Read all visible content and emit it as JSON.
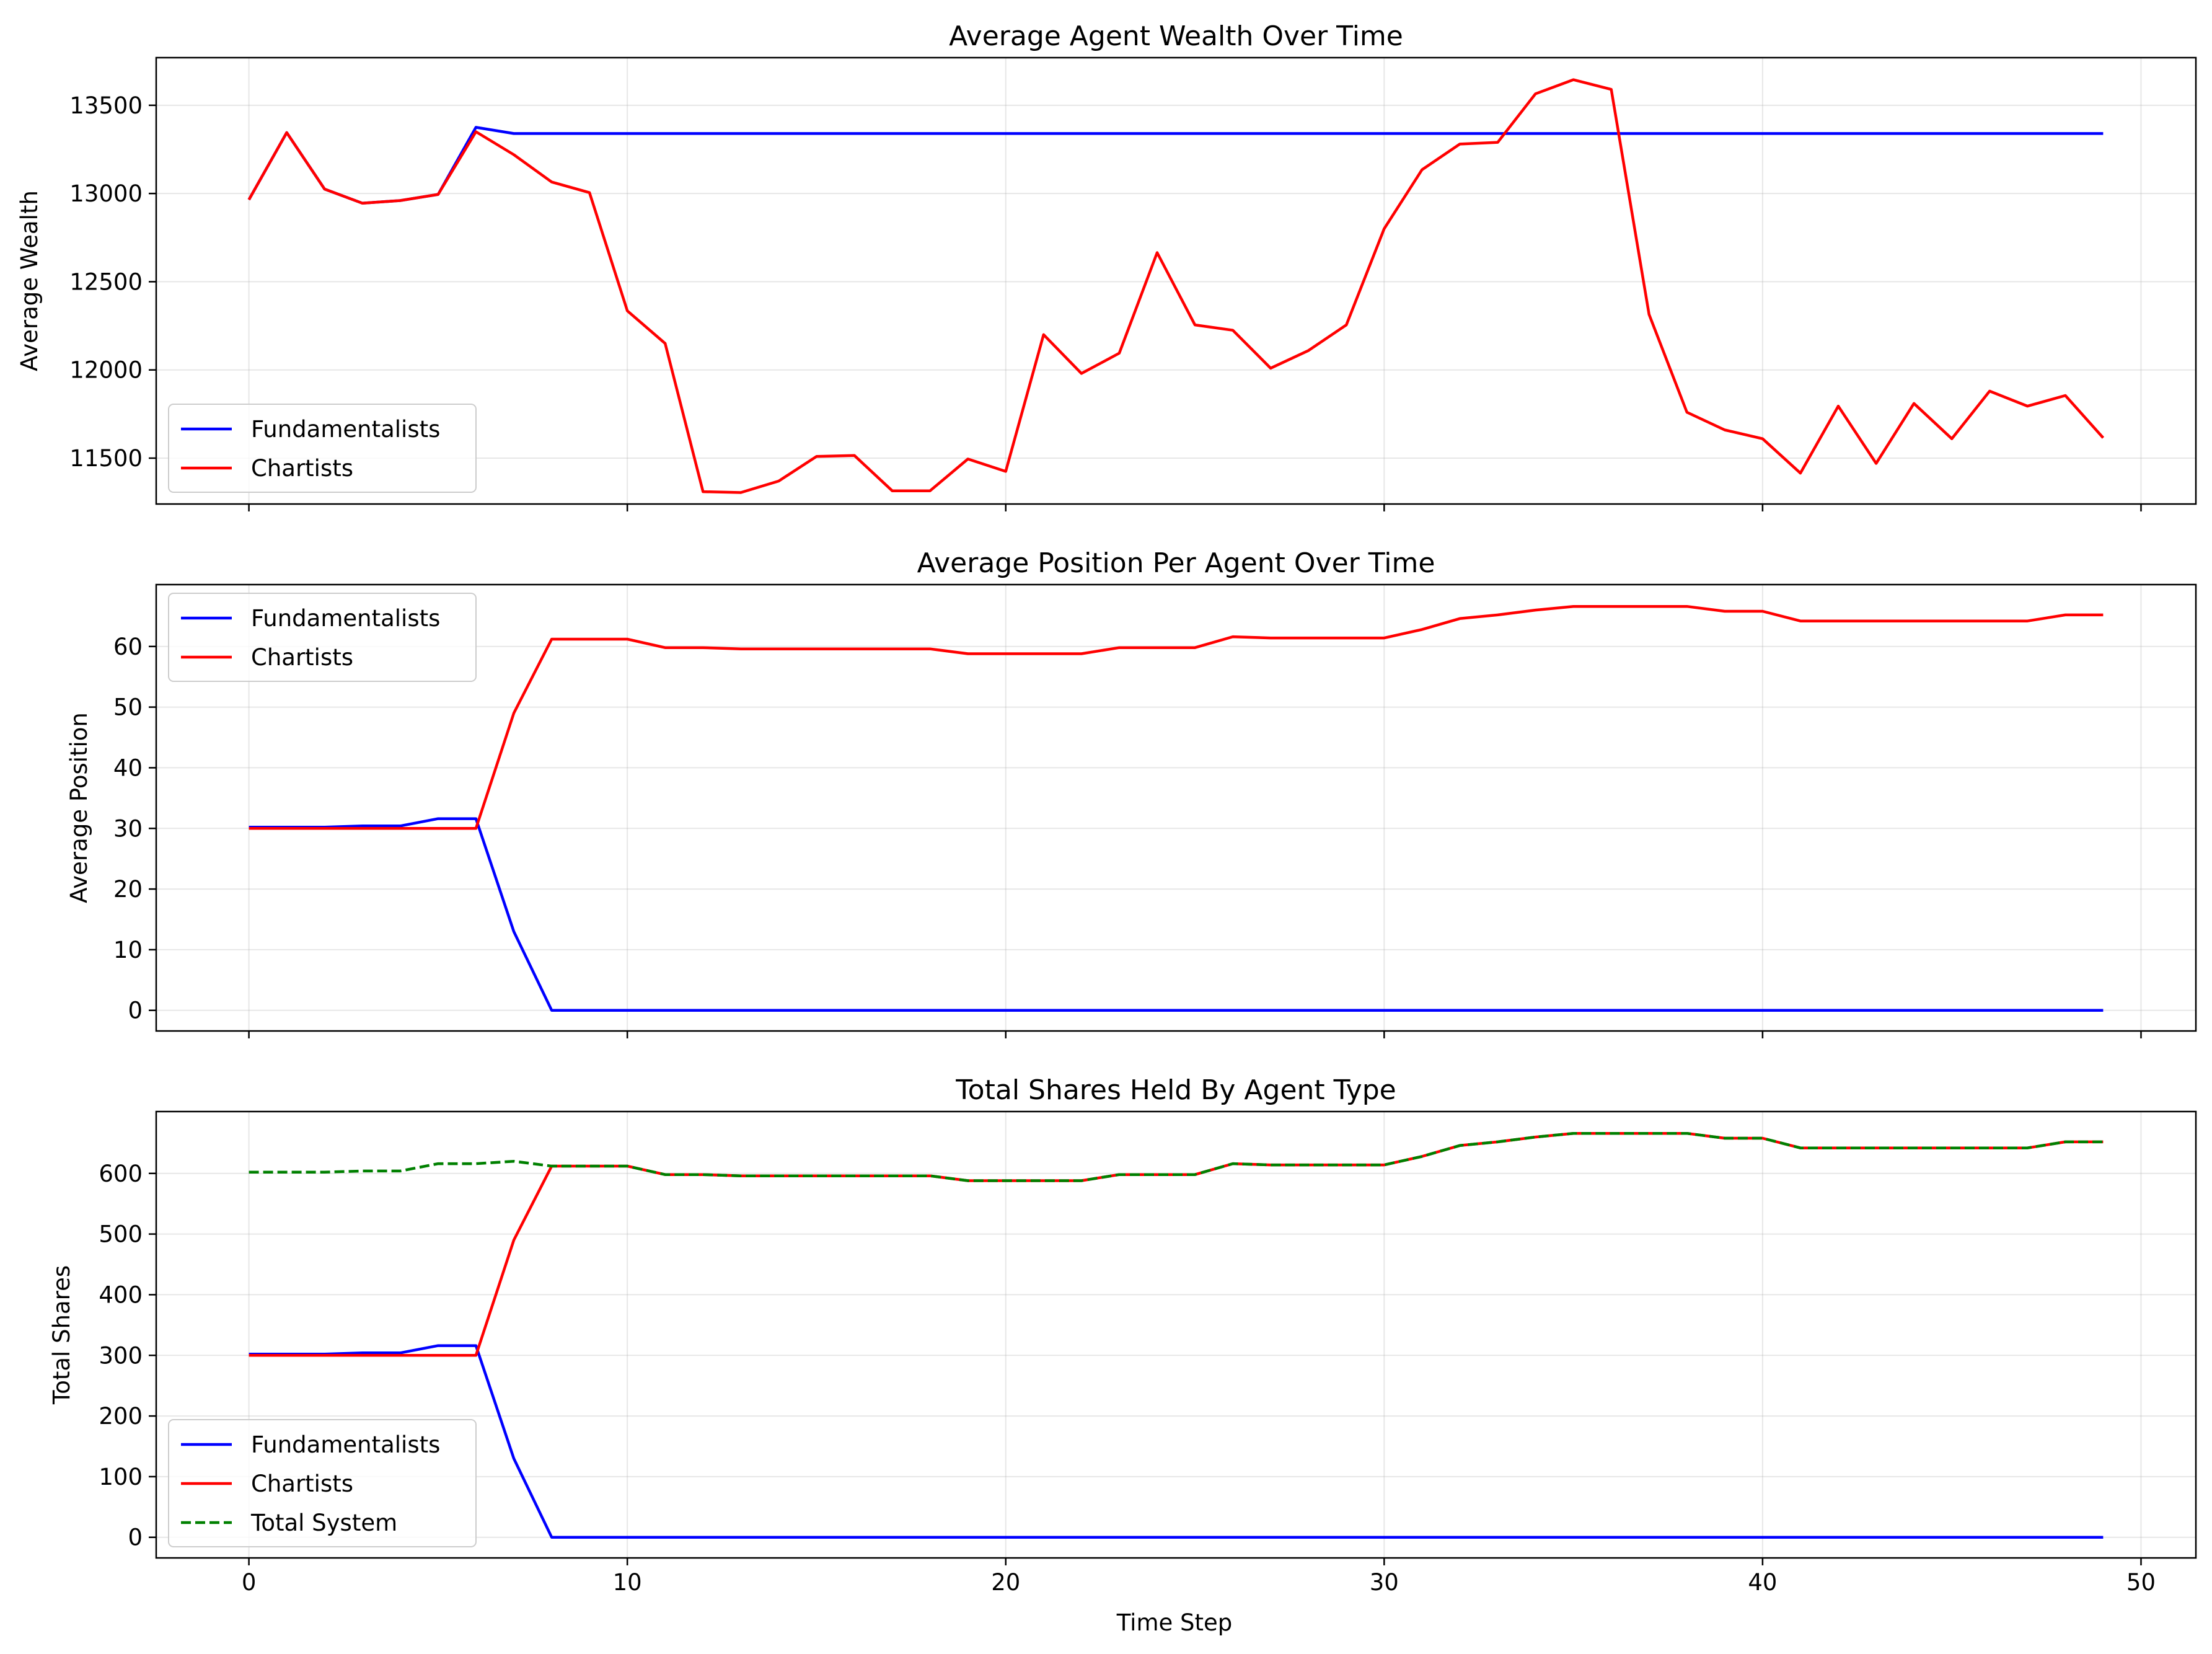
{
  "figure": {
    "xlabel": "Time Step"
  },
  "chart_data": [
    {
      "type": "line",
      "title": "Average Agent Wealth Over Time",
      "xlabel": "",
      "ylabel": "Average Wealth",
      "xlim": [
        -2.45,
        51.45
      ],
      "ylim": [
        11240,
        13770
      ],
      "xticks": [
        0,
        10,
        20,
        30,
        40,
        50
      ],
      "xtick_labels_visible": false,
      "yticks": [
        11500,
        12000,
        12500,
        13000,
        13500
      ],
      "grid": true,
      "legend": "lower-left",
      "x": [
        0,
        1,
        2,
        3,
        4,
        5,
        6,
        7,
        8,
        9,
        10,
        11,
        12,
        13,
        14,
        15,
        16,
        17,
        18,
        19,
        20,
        21,
        22,
        23,
        24,
        25,
        26,
        27,
        28,
        29,
        30,
        31,
        32,
        33,
        34,
        35,
        36,
        37,
        38,
        39,
        40,
        41,
        42,
        43,
        44,
        45,
        46,
        47,
        48,
        49
      ],
      "series": [
        {
          "name": "Fundamentalists",
          "color": "#0000ff",
          "dash": "solid",
          "values": [
            12965,
            13345,
            13025,
            12945,
            12960,
            12995,
            13375,
            13340,
            13340,
            13340,
            13340,
            13340,
            13340,
            13340,
            13340,
            13340,
            13340,
            13340,
            13340,
            13340,
            13340,
            13340,
            13340,
            13340,
            13340,
            13340,
            13340,
            13340,
            13340,
            13340,
            13340,
            13340,
            13340,
            13340,
            13340,
            13340,
            13340,
            13340,
            13340,
            13340,
            13340,
            13340,
            13340,
            13340,
            13340,
            13340,
            13340,
            13340,
            13340,
            13340
          ]
        },
        {
          "name": "Chartists",
          "color": "#ff0000",
          "dash": "solid",
          "values": [
            12965,
            13345,
            13025,
            12945,
            12960,
            12995,
            13350,
            13220,
            13065,
            13005,
            12335,
            12150,
            11310,
            11305,
            11370,
            11510,
            11515,
            11315,
            11315,
            11495,
            11425,
            12200,
            11980,
            12095,
            12665,
            12255,
            12225,
            12010,
            12110,
            12255,
            12800,
            13135,
            13280,
            13290,
            13565,
            13645,
            13590,
            12315,
            11760,
            11660,
            11610,
            11415,
            11795,
            11470,
            11810,
            11610,
            11880,
            11795,
            11855,
            11615
          ]
        }
      ]
    },
    {
      "type": "line",
      "title": "Average Position Per Agent Over Time",
      "xlabel": "",
      "ylabel": "Average Position",
      "xlim": [
        -2.45,
        51.45
      ],
      "ylim": [
        -3.4,
        70.2
      ],
      "xticks": [
        0,
        10,
        20,
        30,
        40,
        50
      ],
      "xtick_labels_visible": false,
      "yticks": [
        0,
        10,
        20,
        30,
        40,
        50,
        60
      ],
      "grid": true,
      "legend": "upper-left",
      "x": [
        0,
        1,
        2,
        3,
        4,
        5,
        6,
        7,
        8,
        9,
        10,
        11,
        12,
        13,
        14,
        15,
        16,
        17,
        18,
        19,
        20,
        21,
        22,
        23,
        24,
        25,
        26,
        27,
        28,
        29,
        30,
        31,
        32,
        33,
        34,
        35,
        36,
        37,
        38,
        39,
        40,
        41,
        42,
        43,
        44,
        45,
        46,
        47,
        48,
        49
      ],
      "series": [
        {
          "name": "Fundamentalists",
          "color": "#0000ff",
          "dash": "solid",
          "values": [
            30.2,
            30.2,
            30.2,
            30.4,
            30.4,
            31.6,
            31.6,
            13.0,
            0,
            0,
            0,
            0,
            0,
            0,
            0,
            0,
            0,
            0,
            0,
            0,
            0,
            0,
            0,
            0,
            0,
            0,
            0,
            0,
            0,
            0,
            0,
            0,
            0,
            0,
            0,
            0,
            0,
            0,
            0,
            0,
            0,
            0,
            0,
            0,
            0,
            0,
            0,
            0,
            0,
            0
          ]
        },
        {
          "name": "Chartists",
          "color": "#ff0000",
          "dash": "solid",
          "values": [
            30.0,
            30.0,
            30.0,
            30.0,
            30.0,
            30.0,
            30.0,
            49.0,
            61.2,
            61.2,
            61.2,
            59.8,
            59.8,
            59.6,
            59.6,
            59.6,
            59.6,
            59.6,
            59.6,
            58.8,
            58.8,
            58.8,
            58.8,
            59.8,
            59.8,
            59.8,
            61.6,
            61.4,
            61.4,
            61.4,
            61.4,
            62.8,
            64.6,
            65.2,
            66.0,
            66.6,
            66.6,
            66.6,
            66.6,
            65.8,
            65.8,
            64.2,
            64.2,
            64.2,
            64.2,
            64.2,
            64.2,
            64.2,
            65.2,
            65.2
          ]
        }
      ]
    },
    {
      "type": "line",
      "title": "Total Shares Held By Agent Type",
      "xlabel": "Time Step",
      "ylabel": "Total Shares",
      "xlim": [
        -2.45,
        51.45
      ],
      "ylim": [
        -34,
        702
      ],
      "xticks": [
        0,
        10,
        20,
        30,
        40,
        50
      ],
      "xtick_labels_visible": true,
      "yticks": [
        0,
        100,
        200,
        300,
        400,
        500,
        600
      ],
      "grid": true,
      "legend": "lower-left",
      "x": [
        0,
        1,
        2,
        3,
        4,
        5,
        6,
        7,
        8,
        9,
        10,
        11,
        12,
        13,
        14,
        15,
        16,
        17,
        18,
        19,
        20,
        21,
        22,
        23,
        24,
        25,
        26,
        27,
        28,
        29,
        30,
        31,
        32,
        33,
        34,
        35,
        36,
        37,
        38,
        39,
        40,
        41,
        42,
        43,
        44,
        45,
        46,
        47,
        48,
        49
      ],
      "series": [
        {
          "name": "Fundamentalists",
          "color": "#0000ff",
          "dash": "solid",
          "values": [
            302,
            302,
            302,
            304,
            304,
            316,
            316,
            130,
            0,
            0,
            0,
            0,
            0,
            0,
            0,
            0,
            0,
            0,
            0,
            0,
            0,
            0,
            0,
            0,
            0,
            0,
            0,
            0,
            0,
            0,
            0,
            0,
            0,
            0,
            0,
            0,
            0,
            0,
            0,
            0,
            0,
            0,
            0,
            0,
            0,
            0,
            0,
            0,
            0,
            0
          ]
        },
        {
          "name": "Chartists",
          "color": "#ff0000",
          "dash": "solid",
          "values": [
            300,
            300,
            300,
            300,
            300,
            300,
            300,
            490,
            612,
            612,
            612,
            598,
            598,
            596,
            596,
            596,
            596,
            596,
            596,
            588,
            588,
            588,
            588,
            598,
            598,
            598,
            616,
            614,
            614,
            614,
            614,
            628,
            646,
            652,
            660,
            666,
            666,
            666,
            666,
            658,
            658,
            642,
            642,
            642,
            642,
            642,
            642,
            642,
            652,
            652
          ]
        },
        {
          "name": "Total System",
          "color": "#008000",
          "dash": "dashed",
          "values": [
            602,
            602,
            602,
            604,
            604,
            616,
            616,
            620,
            612,
            612,
            612,
            598,
            598,
            596,
            596,
            596,
            596,
            596,
            596,
            588,
            588,
            588,
            588,
            598,
            598,
            598,
            616,
            614,
            614,
            614,
            614,
            628,
            646,
            652,
            660,
            666,
            666,
            666,
            666,
            658,
            658,
            642,
            642,
            642,
            642,
            642,
            642,
            642,
            652,
            652
          ]
        }
      ]
    }
  ]
}
